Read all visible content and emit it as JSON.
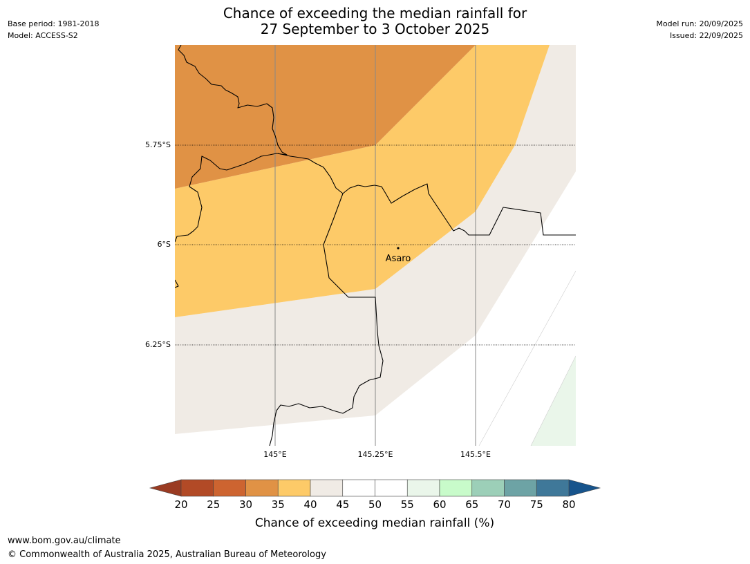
{
  "header": {
    "title_line1": "Chance of exceeding the median rainfall for",
    "title_line2": "27 September to 3 October 2025",
    "base_period": "Base period: 1981-2018",
    "model": "Model: ACCESS-S2",
    "model_run": "Model run: 20/09/2025",
    "issued": "Issued: 22/09/2025"
  },
  "map": {
    "latitude_labels": [
      "5.75°S",
      "6°S",
      "6.25°S"
    ],
    "longitude_labels": [
      "145°E",
      "145.25°E",
      "145.5°E"
    ],
    "place": {
      "name": "Asaro"
    },
    "colors": {
      "band_30_35": "#e09245",
      "band_35_40": "#fdca68",
      "band_40_45": "#f0ebe5",
      "band_55_60": "#eaf6ea",
      "border": "#000000",
      "meridian": "#888888"
    }
  },
  "legend": {
    "title": "Chance of exceeding median rainfall (%)",
    "tick_labels": [
      "20",
      "25",
      "30",
      "35",
      "40",
      "45",
      "50",
      "55",
      "60",
      "65",
      "70",
      "75",
      "80"
    ],
    "under_color": "#9a3b22",
    "over_color": "#17548c",
    "colors": [
      "#b24a26",
      "#cd6430",
      "#e09245",
      "#fdca68",
      "#f0ebe5",
      "#ffffff",
      "#ffffff",
      "#eaf6ea",
      "#c8fbca",
      "#9ccfb8",
      "#6da3a5",
      "#3f7899"
    ]
  },
  "footer": {
    "url": "www.bom.gov.au/climate",
    "copyright": "© Commonwealth of Australia 2025, Australian Bureau of Meteorology"
  }
}
